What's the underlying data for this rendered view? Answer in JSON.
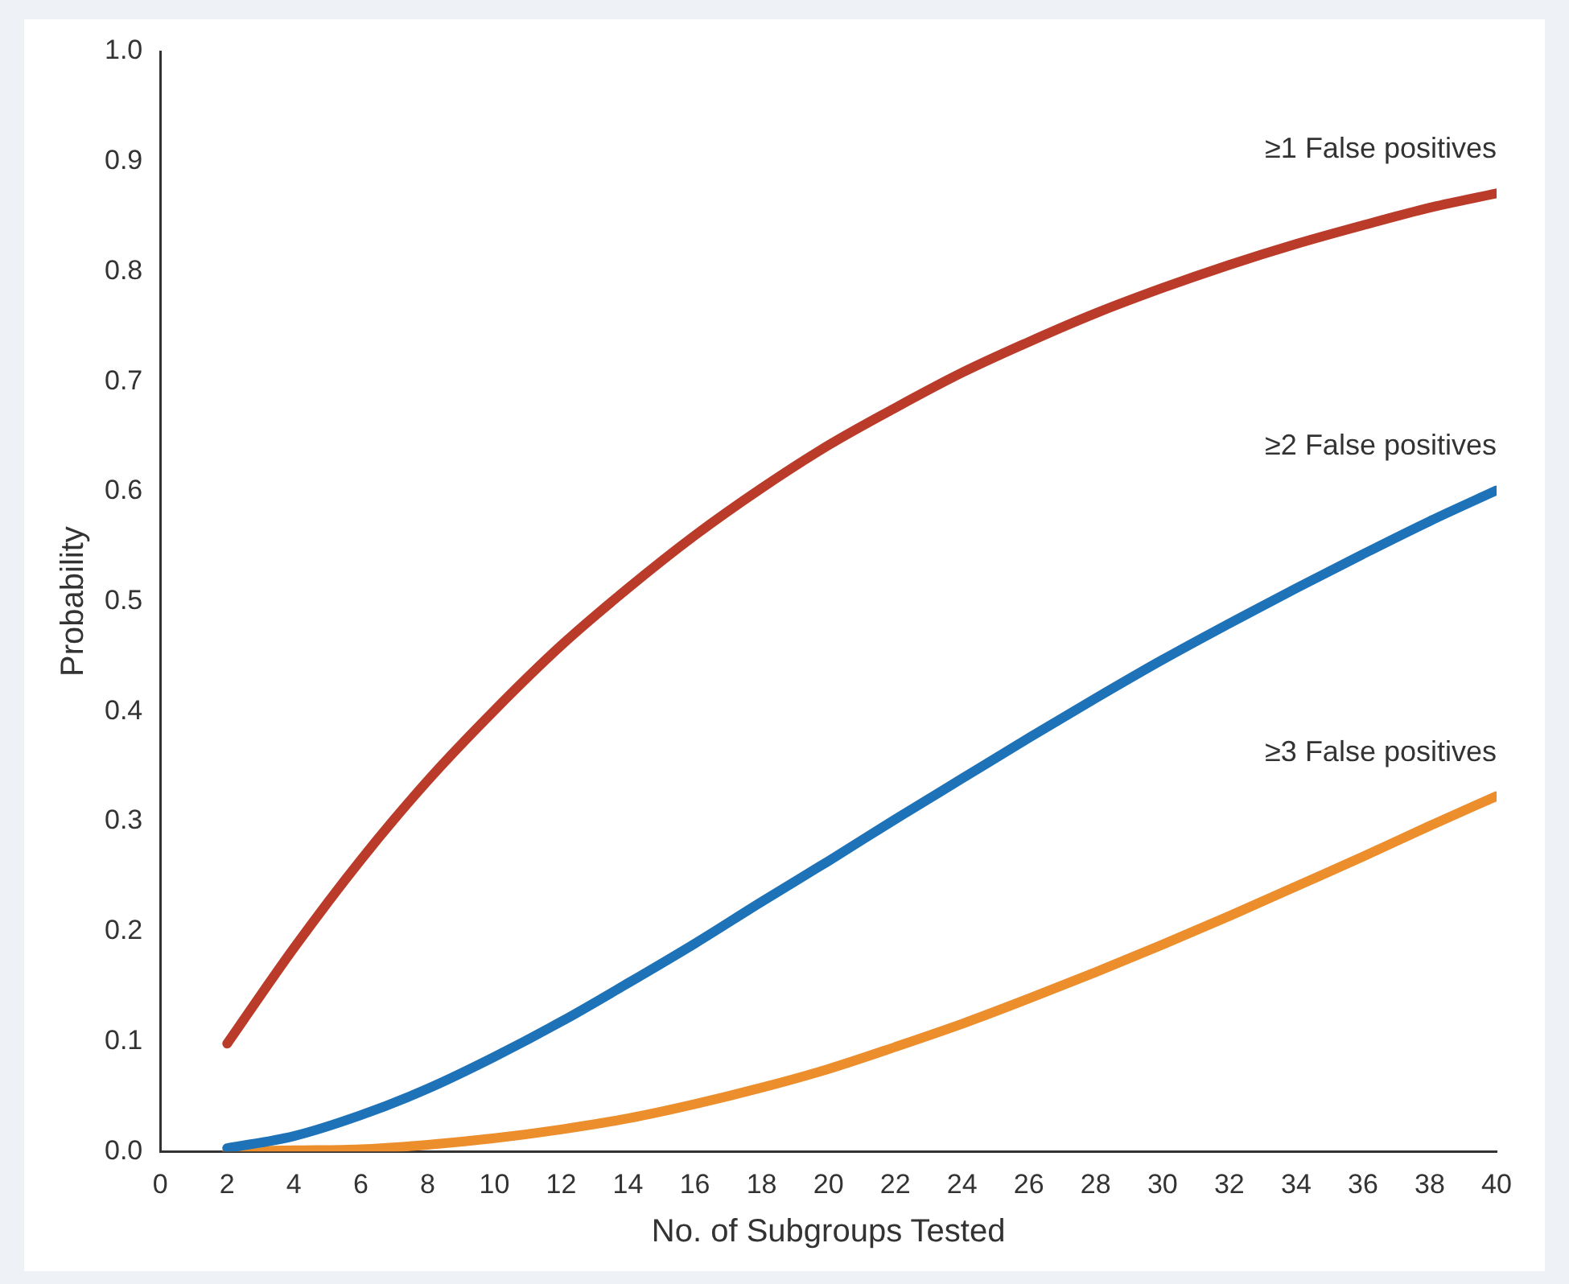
{
  "chart_data": {
    "type": "line",
    "xlabel": "No. of Subgroups Tested",
    "ylabel": "Probability",
    "x": [
      2,
      4,
      6,
      8,
      10,
      12,
      14,
      16,
      18,
      20,
      22,
      24,
      26,
      28,
      30,
      32,
      34,
      36,
      38,
      40
    ],
    "series": [
      {
        "name": "≥1 False positives",
        "color": "#bb3b2a",
        "values": [
          0.098,
          0.185,
          0.265,
          0.337,
          0.401,
          0.46,
          0.512,
          0.56,
          0.603,
          0.642,
          0.676,
          0.708,
          0.736,
          0.762,
          0.785,
          0.806,
          0.825,
          0.842,
          0.858,
          0.871
        ]
      },
      {
        "name": "≥2 False positives",
        "color": "#1d72b8",
        "values": [
          0.003,
          0.014,
          0.033,
          0.057,
          0.086,
          0.118,
          0.153,
          0.189,
          0.227,
          0.264,
          0.302,
          0.339,
          0.376,
          0.412,
          0.447,
          0.48,
          0.512,
          0.543,
          0.573,
          0.601
        ]
      },
      {
        "name": "≥3 False positives",
        "color": "#ec8e2c",
        "values": [
          0.0,
          0.001,
          0.002,
          0.006,
          0.012,
          0.02,
          0.03,
          0.043,
          0.058,
          0.075,
          0.095,
          0.116,
          0.139,
          0.163,
          0.188,
          0.214,
          0.241,
          0.268,
          0.296,
          0.323
        ]
      }
    ],
    "xlim": [
      0,
      40
    ],
    "xticks": [
      0,
      2,
      4,
      6,
      8,
      10,
      12,
      14,
      16,
      18,
      20,
      22,
      24,
      26,
      28,
      30,
      32,
      34,
      36,
      38,
      40
    ],
    "ylim": [
      0,
      1
    ],
    "yticks": [
      {
        "value": 0,
        "label": "0.0"
      },
      0.1,
      0.2,
      0.3,
      0.4,
      0.5,
      0.6,
      0.7,
      0.8,
      0.9,
      {
        "value": 1,
        "label": "1.0"
      }
    ],
    "grid": false,
    "legend": false,
    "marker": "none",
    "line_style": "solid"
  }
}
